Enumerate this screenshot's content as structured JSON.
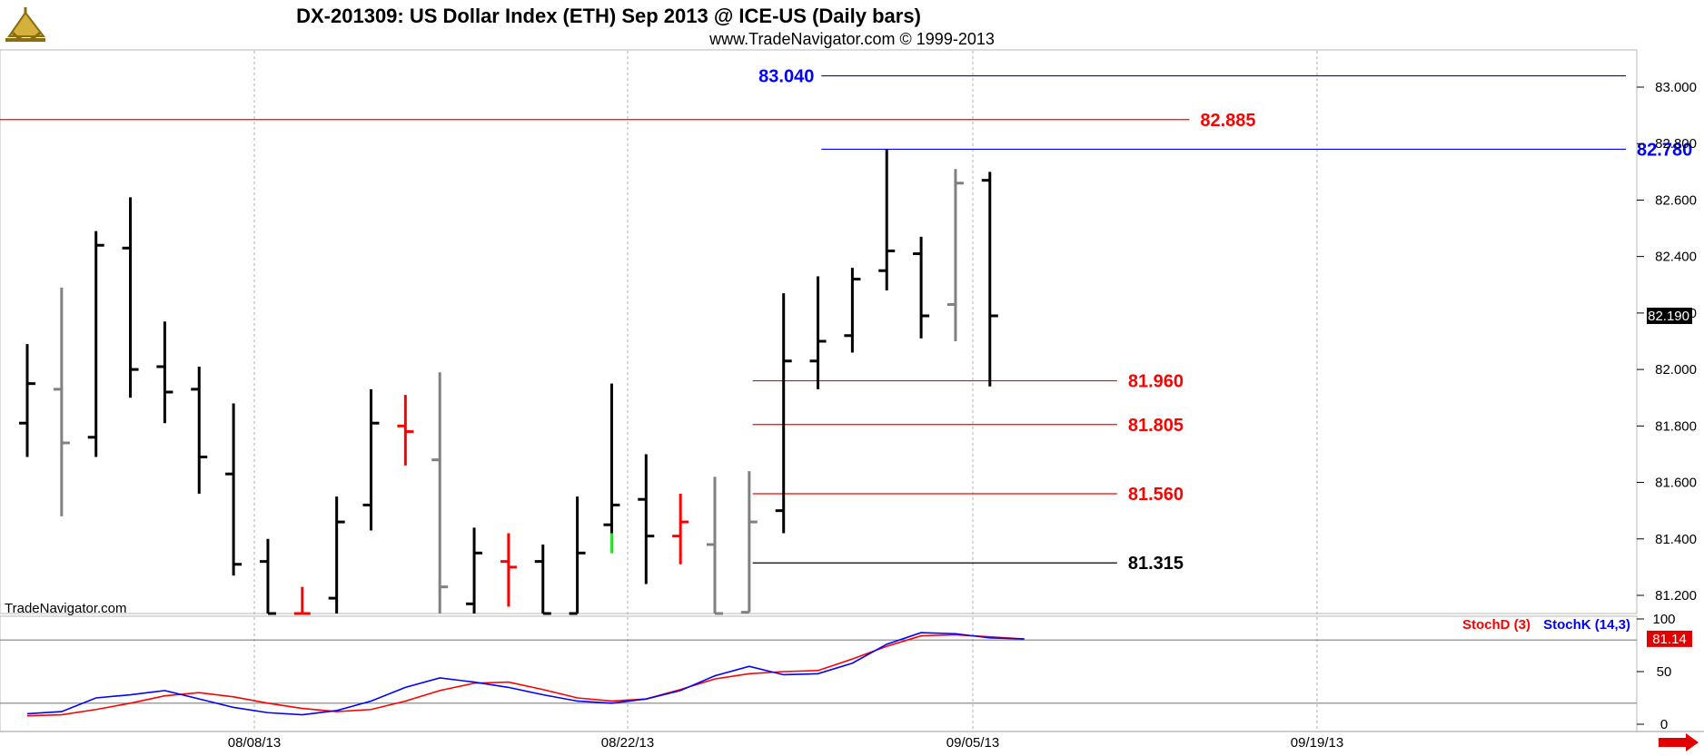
{
  "title": "DX-201309:  US Dollar Index (ETH) Sep 2013 @ ICE-US  (Daily bars)",
  "subtitle": "www.TradeNavigator.com © 1999-2013",
  "watermark": "TradeNavigator.com",
  "logo_icon": "sextant-logo-icon",
  "colors": {
    "up": "#000000",
    "down": "#808080",
    "red_bar": "#ff0000",
    "green_bar": "#33dd33",
    "blue_line": "#0000ff",
    "red_line": "#ff0000",
    "black_line": "#000000"
  },
  "chart_data": [
    {
      "type": "ohlc",
      "ylim": [
        81.1,
        83.15
      ],
      "y_ticks": [
        "83.000",
        "82.800",
        "82.600",
        "82.400",
        "82.200",
        "82.000",
        "81.800",
        "81.600",
        "81.400",
        "81.200"
      ],
      "x_ticks": [
        "08/08/13",
        "08/22/13",
        "09/05/13",
        "09/19/13"
      ],
      "last_price": "82.190",
      "bars": [
        {
          "o": 81.81,
          "h": 82.09,
          "l": 81.69,
          "c": 81.95,
          "color": "black"
        },
        {
          "o": 81.93,
          "h": 82.29,
          "l": 81.48,
          "c": 81.74,
          "color": "gray"
        },
        {
          "o": 81.76,
          "h": 82.49,
          "l": 81.69,
          "c": 82.44,
          "color": "black"
        },
        {
          "o": 82.43,
          "h": 82.61,
          "l": 81.9,
          "c": 82.0,
          "color": "black"
        },
        {
          "o": 82.01,
          "h": 82.17,
          "l": 81.81,
          "c": 81.92,
          "color": "black"
        },
        {
          "o": 81.93,
          "h": 82.01,
          "l": 81.56,
          "c": 81.69,
          "color": "black"
        },
        {
          "o": 81.63,
          "h": 81.88,
          "l": 81.27,
          "c": 81.31,
          "color": "black"
        },
        {
          "o": 81.32,
          "h": 81.4,
          "l": 81.1,
          "c": 81.1,
          "color": "black"
        },
        {
          "o": 81.1,
          "h": 81.23,
          "l": 81.1,
          "c": 81.13,
          "color": "red"
        },
        {
          "o": 81.19,
          "h": 81.55,
          "l": 81.1,
          "c": 81.46,
          "color": "black"
        },
        {
          "o": 81.52,
          "h": 81.93,
          "l": 81.43,
          "c": 81.81,
          "color": "black"
        },
        {
          "o": 81.8,
          "h": 81.91,
          "l": 81.66,
          "c": 81.78,
          "color": "red"
        },
        {
          "o": 81.68,
          "h": 81.99,
          "l": 81.1,
          "c": 81.23,
          "color": "gray"
        },
        {
          "o": 81.17,
          "h": 81.44,
          "l": 81.1,
          "c": 81.35,
          "color": "black"
        },
        {
          "o": 81.32,
          "h": 81.42,
          "l": 81.16,
          "c": 81.3,
          "color": "red"
        },
        {
          "o": 81.32,
          "h": 81.38,
          "l": 81.1,
          "c": 81.1,
          "color": "black"
        },
        {
          "o": 81.1,
          "h": 81.55,
          "l": 81.1,
          "c": 81.35,
          "color": "black"
        },
        {
          "o": 81.45,
          "h": 81.95,
          "l": 81.35,
          "c": 81.52,
          "color": "black"
        },
        {
          "o": 81.54,
          "h": 81.7,
          "l": 81.24,
          "c": 81.41,
          "color": "black"
        },
        {
          "o": 81.41,
          "h": 81.56,
          "l": 81.31,
          "c": 81.46,
          "color": "red"
        },
        {
          "o": 81.38,
          "h": 81.62,
          "l": 81.12,
          "c": 81.12,
          "color": "gray"
        },
        {
          "o": 81.14,
          "h": 81.64,
          "l": 81.14,
          "c": 81.46,
          "color": "gray"
        },
        {
          "o": 81.5,
          "h": 82.27,
          "l": 81.42,
          "c": 82.03,
          "color": "black"
        },
        {
          "o": 82.03,
          "h": 82.33,
          "l": 81.93,
          "c": 82.1,
          "color": "black"
        },
        {
          "o": 82.12,
          "h": 82.36,
          "l": 82.06,
          "c": 82.32,
          "color": "black"
        },
        {
          "o": 82.35,
          "h": 82.78,
          "l": 82.28,
          "c": 82.42,
          "color": "black"
        },
        {
          "o": 82.41,
          "h": 82.47,
          "l": 82.11,
          "c": 82.19,
          "color": "black"
        },
        {
          "o": 82.23,
          "h": 82.71,
          "l": 82.1,
          "c": 82.66,
          "color": "gray"
        },
        {
          "o": 82.67,
          "h": 82.7,
          "l": 81.94,
          "c": 82.19,
          "color": "black"
        }
      ],
      "levels": [
        {
          "value": 83.04,
          "label": "83.040",
          "color": "blue",
          "from_bar": 23.1,
          "to_bar": 46.5,
          "label_side": "left"
        },
        {
          "value": 82.885,
          "label": "82.885",
          "color": "red",
          "from_bar": -1,
          "to_bar": 33.8,
          "label_side": "right"
        },
        {
          "value": 82.78,
          "label": "82.780",
          "color": "blue",
          "from_bar": 23.1,
          "to_bar": 46.5,
          "label_side": "right"
        },
        {
          "value": 81.96,
          "label": "81.960",
          "color": "red",
          "from_bar": 21.1,
          "to_bar": 31.7,
          "label_side": "right"
        },
        {
          "value": 81.805,
          "label": "81.805",
          "color": "red",
          "from_bar": 21.1,
          "to_bar": 31.7,
          "label_side": "right"
        },
        {
          "value": 81.56,
          "label": "81.560",
          "color": "red",
          "from_bar": 21.1,
          "to_bar": 31.7,
          "label_side": "right"
        },
        {
          "value": 81.315,
          "label": "81.315",
          "color": "black",
          "from_bar": 21.1,
          "to_bar": 31.7,
          "label_side": "right"
        }
      ]
    },
    {
      "type": "line",
      "ylim": [
        0,
        100
      ],
      "y_ticks": [
        "100",
        "50",
        "0"
      ],
      "reference_lines": [
        80,
        20
      ],
      "last_value": "81.14",
      "series": [
        {
          "name": "StochD (3)",
          "color": "red",
          "values": [
            8,
            9,
            14,
            20,
            27,
            30,
            26,
            20,
            15,
            12,
            14,
            22,
            32,
            39,
            40,
            33,
            25,
            22,
            24,
            33,
            43,
            48,
            50,
            51,
            62,
            74,
            84,
            85,
            83,
            81
          ]
        },
        {
          "name": "StochK (14,3)",
          "color": "blue",
          "values": [
            10,
            12,
            25,
            28,
            32,
            24,
            16,
            11,
            9,
            13,
            22,
            35,
            44,
            40,
            35,
            28,
            22,
            20,
            24,
            32,
            46,
            55,
            47,
            48,
            58,
            76,
            87,
            86,
            82,
            81
          ]
        }
      ]
    }
  ]
}
